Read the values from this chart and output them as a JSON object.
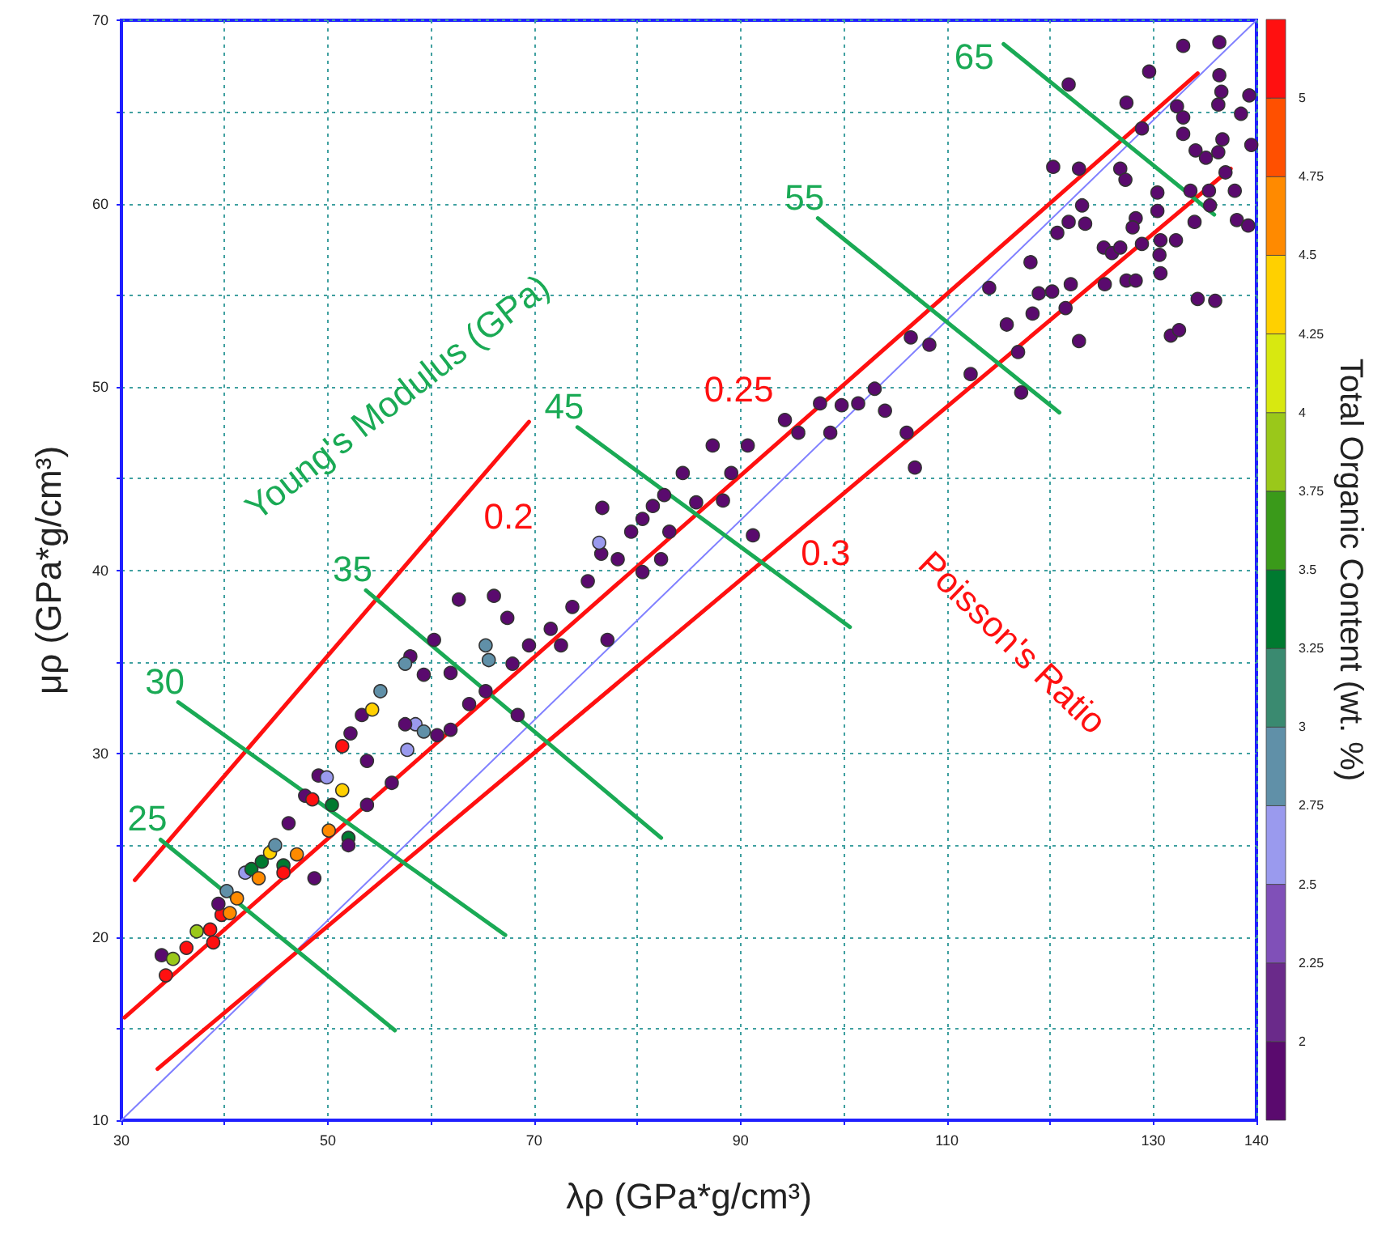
{
  "chart_data": {
    "type": "scatter",
    "xlabel": "λρ (GPa*g/cm³)",
    "ylabel": "μρ (GPa*g/cm³)",
    "clabel": "Total Organic Content (wt. %)",
    "xlim": [
      30,
      140
    ],
    "ylim": [
      10,
      70
    ],
    "xticks": [
      30,
      {
        "value": 40,
        "label": null
      },
      50,
      {
        "value": 60,
        "label": null
      },
      70,
      {
        "value": 80,
        "label": null
      },
      90,
      {
        "value": 100,
        "label": null
      },
      110,
      {
        "value": 120,
        "label": null
      },
      130,
      140
    ],
    "yticks": [
      10,
      {
        "value": 15,
        "label": null
      },
      20,
      {
        "value": 25,
        "label": null
      },
      30,
      {
        "value": 35,
        "label": null
      },
      40,
      {
        "value": 45,
        "label": null
      },
      50,
      {
        "value": 55,
        "label": null
      },
      60,
      {
        "value": 65,
        "label": null
      },
      70
    ],
    "clim": [
      1.75,
      5.25
    ],
    "cticks": [
      2,
      2.25,
      2.5,
      2.75,
      3,
      3.25,
      3.5,
      3.75,
      4,
      4.25,
      4.5,
      4.75,
      5
    ],
    "grid": true,
    "series": [
      {
        "marker": "circle",
        "x": [
          33.9,
          34.3,
          35.0,
          36.3,
          37.3,
          38.6,
          38.9,
          39.7,
          40.5,
          39.4,
          40.2,
          41.2,
          42.0,
          42.6,
          43.3,
          43.6,
          44.4,
          44.9,
          45.7,
          45.7,
          47.0,
          46.2,
          47.8,
          48.5,
          49.1,
          49.9,
          50.4,
          51.4,
          51.4,
          52.2,
          53.3,
          54.3,
          55.1,
          50.1,
          52.0,
          48.7,
          52.0,
          53.8,
          53.8,
          56.2,
          57.7,
          58.5,
          59.3,
          57.5,
          60.6,
          58.0,
          57.5,
          59.3,
          60.3,
          61.9,
          62.7,
          66.1,
          67.4,
          65.3,
          65.6,
          63.7,
          65.3,
          67.9,
          69.5,
          71.6,
          72.6,
          73.7,
          75.2,
          76.5,
          76.3,
          76.6,
          77.1,
          78.1,
          79.4,
          80.5,
          81.5,
          82.6,
          84.4,
          83.1,
          82.3,
          80.5,
          85.7,
          88.3,
          87.3,
          90.7,
          89.1,
          91.2,
          94.3,
          95.6,
          61.9,
          68.4,
          97.7,
          99.8,
          101.4,
          103.0,
          104.0,
          98.7,
          106.1,
          106.9,
          106.5,
          108.3,
          112.3,
          114.1,
          115.8,
          117.2,
          116.9,
          118.1,
          118.3,
          118.9,
          120.2,
          121.5,
          122.0,
          122.8,
          120.3,
          121.8,
          122.8,
          123.1,
          121.8,
          120.7,
          123.4,
          125.2,
          126.0,
          126.8,
          125.3,
          127.4,
          128.3,
          126.8,
          127.3,
          128.3,
          128.0,
          128.9,
          127.4,
          129.6,
          128.9,
          130.4,
          130.4,
          130.7,
          130.6,
          130.7,
          132.2,
          131.7,
          132.5,
          132.3,
          132.9,
          132.9,
          132.9,
          134.1,
          133.6,
          134.0,
          134.3,
          136.0,
          135.4,
          135.5,
          135.1,
          136.3,
          136.7,
          136.4,
          136.4,
          136.6,
          136.3,
          137.0,
          137.9,
          138.1,
          139.2,
          138.5,
          139.3,
          139.5
        ],
        "values": [
          19.0,
          17.9,
          18.8,
          19.4,
          20.3,
          20.4,
          19.7,
          21.2,
          21.3,
          21.8,
          22.5,
          22.1,
          23.5,
          23.7,
          23.2,
          24.1,
          24.6,
          25.0,
          23.9,
          23.5,
          24.5,
          26.2,
          27.7,
          27.5,
          28.8,
          28.7,
          27.2,
          28.0,
          30.4,
          31.1,
          32.1,
          32.4,
          33.4,
          25.8,
          25.4,
          23.2,
          25.0,
          29.6,
          27.2,
          28.4,
          30.2,
          31.6,
          31.2,
          31.6,
          31.0,
          35.3,
          34.9,
          34.3,
          36.2,
          34.4,
          38.4,
          38.6,
          37.4,
          35.9,
          35.1,
          32.7,
          33.4,
          34.9,
          35.9,
          36.8,
          35.9,
          38.0,
          39.4,
          40.9,
          41.5,
          43.4,
          36.2,
          40.6,
          42.1,
          42.8,
          43.5,
          44.1,
          45.3,
          42.1,
          40.6,
          39.9,
          43.7,
          43.8,
          46.8,
          46.8,
          45.3,
          41.9,
          48.2,
          47.5,
          31.3,
          32.1,
          49.1,
          49.0,
          49.1,
          49.9,
          48.7,
          47.5,
          47.5,
          45.6,
          52.7,
          52.3,
          50.7,
          55.4,
          53.4,
          49.7,
          51.9,
          56.8,
          54.0,
          55.1,
          55.2,
          54.3,
          55.6,
          52.5,
          62.0,
          66.5,
          61.9,
          59.9,
          59.0,
          58.4,
          58.9,
          57.6,
          57.3,
          57.6,
          55.6,
          55.8,
          55.8,
          61.9,
          61.3,
          59.2,
          58.7,
          57.8,
          65.5,
          67.2,
          64.1,
          60.6,
          59.6,
          58.0,
          57.2,
          56.2,
          58.0,
          52.8,
          53.1,
          65.3,
          68.6,
          64.7,
          63.8,
          62.9,
          60.7,
          59.0,
          54.8,
          54.7,
          60.7,
          59.9,
          62.5,
          62.8,
          63.5,
          68.8,
          67.0,
          66.1,
          65.4,
          61.7,
          60.7,
          59.1,
          58.8,
          64.9,
          65.9,
          63.2
        ],
        "colors": [
          "#5a0a6e",
          "#ff1010",
          "#9ac81a",
          "#ff1010",
          "#9ac81a",
          "#ff1010",
          "#ff1010",
          "#ff1010",
          "#ff8a00",
          "#5a0a6e",
          "#6090a8",
          "#ff8a00",
          "#9a9aee",
          "#007a30",
          "#ff8a00",
          "#007a30",
          "#ffd000",
          "#6090a8",
          "#007a30",
          "#ff1010",
          "#ff8a00",
          "#5a0a6e",
          "#5a0a6e",
          "#ff1010",
          "#5a0a6e",
          "#9a9aee",
          "#007a30",
          "#ffd000",
          "#ff1010",
          "#5a0a6e",
          "#5a0a6e",
          "#ffd000",
          "#6090a8",
          "#ff8a00",
          "#007a30",
          "#5a0a6e",
          "#5a0a6e",
          "#5a0a6e",
          "#5a0a6e",
          "#5a0a6e",
          "#9a9aee",
          "#9a9aee",
          "#6090a8",
          "#5a0a6e",
          "#5a0a6e",
          "#5a0a6e",
          "#6090a8",
          "#5a0a6e",
          "#5a0a6e",
          "#5a0a6e",
          "#5a0a6e",
          "#5a0a6e",
          "#5a0a6e",
          "#6090a8",
          "#6090a8",
          "#5a0a6e",
          "#5a0a6e",
          "#5a0a6e",
          "#5a0a6e",
          "#5a0a6e",
          "#5a0a6e",
          "#5a0a6e",
          "#5a0a6e",
          "#5a0a6e",
          "#9a9aee",
          "#5a0a6e",
          "#5a0a6e",
          "#5a0a6e",
          "#5a0a6e",
          "#5a0a6e",
          "#5a0a6e",
          "#5a0a6e",
          "#5a0a6e",
          "#5a0a6e",
          "#5a0a6e",
          "#5a0a6e",
          "#5a0a6e",
          "#5a0a6e",
          "#5a0a6e",
          "#5a0a6e",
          "#5a0a6e",
          "#5a0a6e",
          "#5a0a6e",
          "#5a0a6e",
          "#5a0a6e",
          "#5a0a6e",
          "#5a0a6e",
          "#5a0a6e",
          "#5a0a6e",
          "#5a0a6e",
          "#5a0a6e",
          "#5a0a6e",
          "#5a0a6e",
          "#5a0a6e",
          "#5a0a6e",
          "#5a0a6e",
          "#5a0a6e",
          "#5a0a6e",
          "#5a0a6e",
          "#5a0a6e",
          "#5a0a6e",
          "#5a0a6e",
          "#5a0a6e",
          "#5a0a6e",
          "#5a0a6e",
          "#5a0a6e",
          "#5a0a6e",
          "#5a0a6e",
          "#5a0a6e",
          "#5a0a6e",
          "#5a0a6e",
          "#5a0a6e",
          "#5a0a6e",
          "#5a0a6e",
          "#5a0a6e",
          "#5a0a6e",
          "#5a0a6e",
          "#5a0a6e",
          "#5a0a6e",
          "#5a0a6e",
          "#5a0a6e",
          "#5a0a6e",
          "#5a0a6e",
          "#5a0a6e",
          "#5a0a6e",
          "#5a0a6e",
          "#5a0a6e",
          "#5a0a6e",
          "#5a0a6e",
          "#5a0a6e",
          "#5a0a6e",
          "#5a0a6e",
          "#5a0a6e",
          "#5a0a6e",
          "#5a0a6e",
          "#5a0a6e",
          "#5a0a6e",
          "#5a0a6e",
          "#5a0a6e",
          "#5a0a6e",
          "#5a0a6e",
          "#5a0a6e",
          "#5a0a6e",
          "#5a0a6e",
          "#5a0a6e",
          "#5a0a6e",
          "#5a0a6e",
          "#5a0a6e",
          "#5a0a6e",
          "#5a0a6e",
          "#5a0a6e",
          "#5a0a6e",
          "#5a0a6e",
          "#5a0a6e",
          "#5a0a6e",
          "#5a0a6e",
          "#5a0a6e",
          "#5a0a6e",
          "#5a0a6e",
          "#5a0a6e",
          "#5a0a6e",
          "#5a0a6e"
        ]
      },
      {
        "type": "line",
        "marker": "none",
        "line_style": "solid",
        "color": "#8080ff",
        "x": [
          30,
          140
        ],
        "values": [
          10,
          70
        ]
      },
      {
        "type": "line",
        "marker": "none",
        "line_style": "solid",
        "name": "0.2",
        "color": "#ff1010",
        "x": [
          31.3,
          69.5
        ],
        "values": [
          23.1,
          48.1
        ]
      },
      {
        "type": "line",
        "marker": "none",
        "line_style": "solid",
        "name": "0.25",
        "color": "#ff1010",
        "x": [
          30.3,
          134.3
        ],
        "values": [
          15.6,
          67.1
        ]
      },
      {
        "type": "line",
        "marker": "none",
        "line_style": "solid",
        "name": "0.3",
        "color": "#ff1010",
        "x": [
          33.5,
          137.5
        ],
        "values": [
          12.8,
          61.9
        ]
      },
      {
        "type": "line",
        "marker": "none",
        "line_style": "solid",
        "name": "25",
        "color": "#1aaa55",
        "x": [
          33.8,
          56.5
        ],
        "values": [
          25.3,
          14.9
        ]
      },
      {
        "type": "line",
        "marker": "none",
        "line_style": "solid",
        "name": "30",
        "color": "#1aaa55",
        "x": [
          35.5,
          67.2
        ],
        "values": [
          32.8,
          20.1
        ]
      },
      {
        "type": "line",
        "marker": "none",
        "line_style": "solid",
        "name": "35",
        "color": "#1aaa55",
        "x": [
          53.7,
          82.3
        ],
        "values": [
          38.9,
          25.4
        ]
      },
      {
        "type": "line",
        "marker": "none",
        "line_style": "solid",
        "name": "45",
        "color": "#1aaa55",
        "x": [
          74.2,
          100.6
        ],
        "values": [
          47.8,
          36.9
        ]
      },
      {
        "type": "line",
        "marker": "none",
        "line_style": "solid",
        "name": "55",
        "color": "#1aaa55",
        "x": [
          97.5,
          120.9
        ],
        "values": [
          59.2,
          48.6
        ]
      },
      {
        "type": "line",
        "marker": "none",
        "line_style": "solid",
        "name": "65",
        "color": "#1aaa55",
        "x": [
          115.5,
          135.9
        ],
        "values": [
          68.7,
          59.4
        ]
      }
    ],
    "annotations": [
      "Young's Modulus (GPa)",
      "Poisson's Ratio"
    ]
  }
}
